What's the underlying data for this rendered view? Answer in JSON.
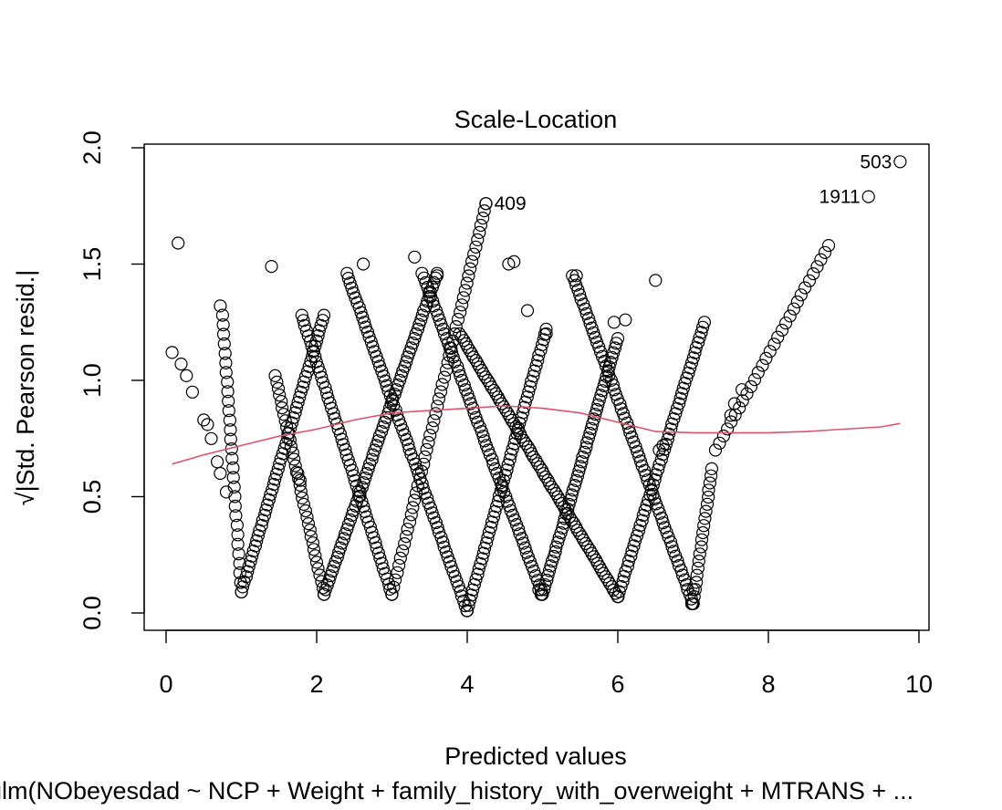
{
  "chart_data": {
    "type": "scatter",
    "title": "Scale-Location",
    "xlabel": "Predicted values",
    "ylabel": "√|Std. Pearson resid.|",
    "subtitle": "glm(NObeyesdad ~ NCP + Weight + family_history_with_overweight + MTRANS + ...",
    "xlim": [
      0,
      10
    ],
    "ylim": [
      0.0,
      2.0
    ],
    "xticks": [
      "0",
      "2",
      "4",
      "6",
      "8",
      "10"
    ],
    "yticks": [
      "0.0",
      "0.5",
      "1.0",
      "1.5",
      "2.0"
    ],
    "point_style": "open-circle",
    "smooth_color": "#DF536B",
    "labeled_points": [
      {
        "label": "503",
        "x": 9.75,
        "y": 1.94
      },
      {
        "label": "1911",
        "x": 9.33,
        "y": 1.79
      },
      {
        "label": "409",
        "x": 4.25,
        "y": 1.76
      }
    ],
    "isolated_points": [
      [
        0.08,
        1.12
      ],
      [
        0.16,
        1.59
      ],
      [
        0.2,
        1.07
      ],
      [
        0.27,
        1.02
      ],
      [
        0.35,
        0.95
      ],
      [
        0.5,
        0.83
      ],
      [
        0.55,
        0.81
      ],
      [
        0.6,
        0.75
      ],
      [
        0.68,
        0.65
      ],
      [
        0.72,
        0.6
      ],
      [
        0.8,
        0.52
      ],
      [
        0.72,
        1.32
      ],
      [
        1.4,
        1.49
      ],
      [
        1.75,
        0.6
      ],
      [
        1.78,
        0.57
      ],
      [
        3.3,
        1.53
      ],
      [
        3.0,
        0.08
      ],
      [
        2.62,
        1.5
      ],
      [
        4.0,
        0.01
      ],
      [
        4.55,
        1.5
      ],
      [
        4.62,
        1.51
      ],
      [
        4.95,
        0.1
      ],
      [
        4.98,
        0.08
      ],
      [
        6.0,
        0.07
      ],
      [
        6.98,
        0.04
      ],
      [
        7.0,
        0.1
      ],
      [
        6.5,
        1.43
      ],
      [
        5.45,
        1.45
      ],
      [
        4.8,
        1.3
      ],
      [
        5.05,
        1.2
      ],
      [
        3.6,
        1.45
      ],
      [
        5.95,
        1.25
      ],
      [
        6.1,
        1.26
      ],
      [
        6.55,
        0.7
      ],
      [
        6.6,
        0.72
      ],
      [
        7.65,
        0.96
      ],
      [
        7.55,
        0.9
      ],
      [
        7.5,
        0.85
      ]
    ],
    "v_branches": [
      {
        "from": [
          0.75,
          1.28
        ],
        "to": [
          1.0,
          0.09
        ],
        "n": 30
      },
      {
        "from": [
          1.0,
          0.09
        ],
        "to": [
          2.1,
          1.28
        ],
        "n": 55
      },
      {
        "from": [
          1.45,
          1.02
        ],
        "to": [
          2.1,
          0.08
        ],
        "n": 35
      },
      {
        "from": [
          2.1,
          0.08
        ],
        "to": [
          3.6,
          1.46
        ],
        "n": 70
      },
      {
        "from": [
          1.8,
          1.28
        ],
        "to": [
          3.0,
          0.08
        ],
        "n": 55
      },
      {
        "from": [
          3.0,
          0.08
        ],
        "to": [
          4.25,
          1.76
        ],
        "n": 55
      },
      {
        "from": [
          2.4,
          1.46
        ],
        "to": [
          4.0,
          0.01
        ],
        "n": 70
      },
      {
        "from": [
          4.0,
          0.01
        ],
        "to": [
          5.05,
          1.22
        ],
        "n": 55
      },
      {
        "from": [
          3.4,
          1.46
        ],
        "to": [
          5.0,
          0.08
        ],
        "n": 70
      },
      {
        "from": [
          5.0,
          0.08
        ],
        "to": [
          6.0,
          1.18
        ],
        "n": 55
      },
      {
        "from": [
          3.9,
          1.2
        ],
        "to": [
          6.0,
          0.07
        ],
        "n": 80
      },
      {
        "from": [
          6.0,
          0.07
        ],
        "to": [
          7.15,
          1.25
        ],
        "n": 55
      },
      {
        "from": [
          5.4,
          1.45
        ],
        "to": [
          7.0,
          0.04
        ],
        "n": 70
      },
      {
        "from": [
          7.0,
          0.04
        ],
        "to": [
          7.25,
          0.62
        ],
        "n": 20
      },
      {
        "from": [
          7.3,
          0.7
        ],
        "to": [
          8.8,
          1.58
        ],
        "n": 30
      }
    ],
    "smooth_line": [
      [
        0.08,
        0.64
      ],
      [
        0.5,
        0.68
      ],
      [
        1.0,
        0.72
      ],
      [
        1.5,
        0.76
      ],
      [
        2.0,
        0.79
      ],
      [
        2.5,
        0.83
      ],
      [
        3.0,
        0.86
      ],
      [
        3.5,
        0.87
      ],
      [
        4.0,
        0.88
      ],
      [
        4.5,
        0.89
      ],
      [
        5.0,
        0.88
      ],
      [
        5.5,
        0.86
      ],
      [
        6.0,
        0.82
      ],
      [
        6.5,
        0.78
      ],
      [
        7.0,
        0.775
      ],
      [
        7.5,
        0.775
      ],
      [
        8.0,
        0.775
      ],
      [
        8.5,
        0.78
      ],
      [
        9.0,
        0.79
      ],
      [
        9.5,
        0.8
      ],
      [
        9.75,
        0.815
      ]
    ]
  }
}
